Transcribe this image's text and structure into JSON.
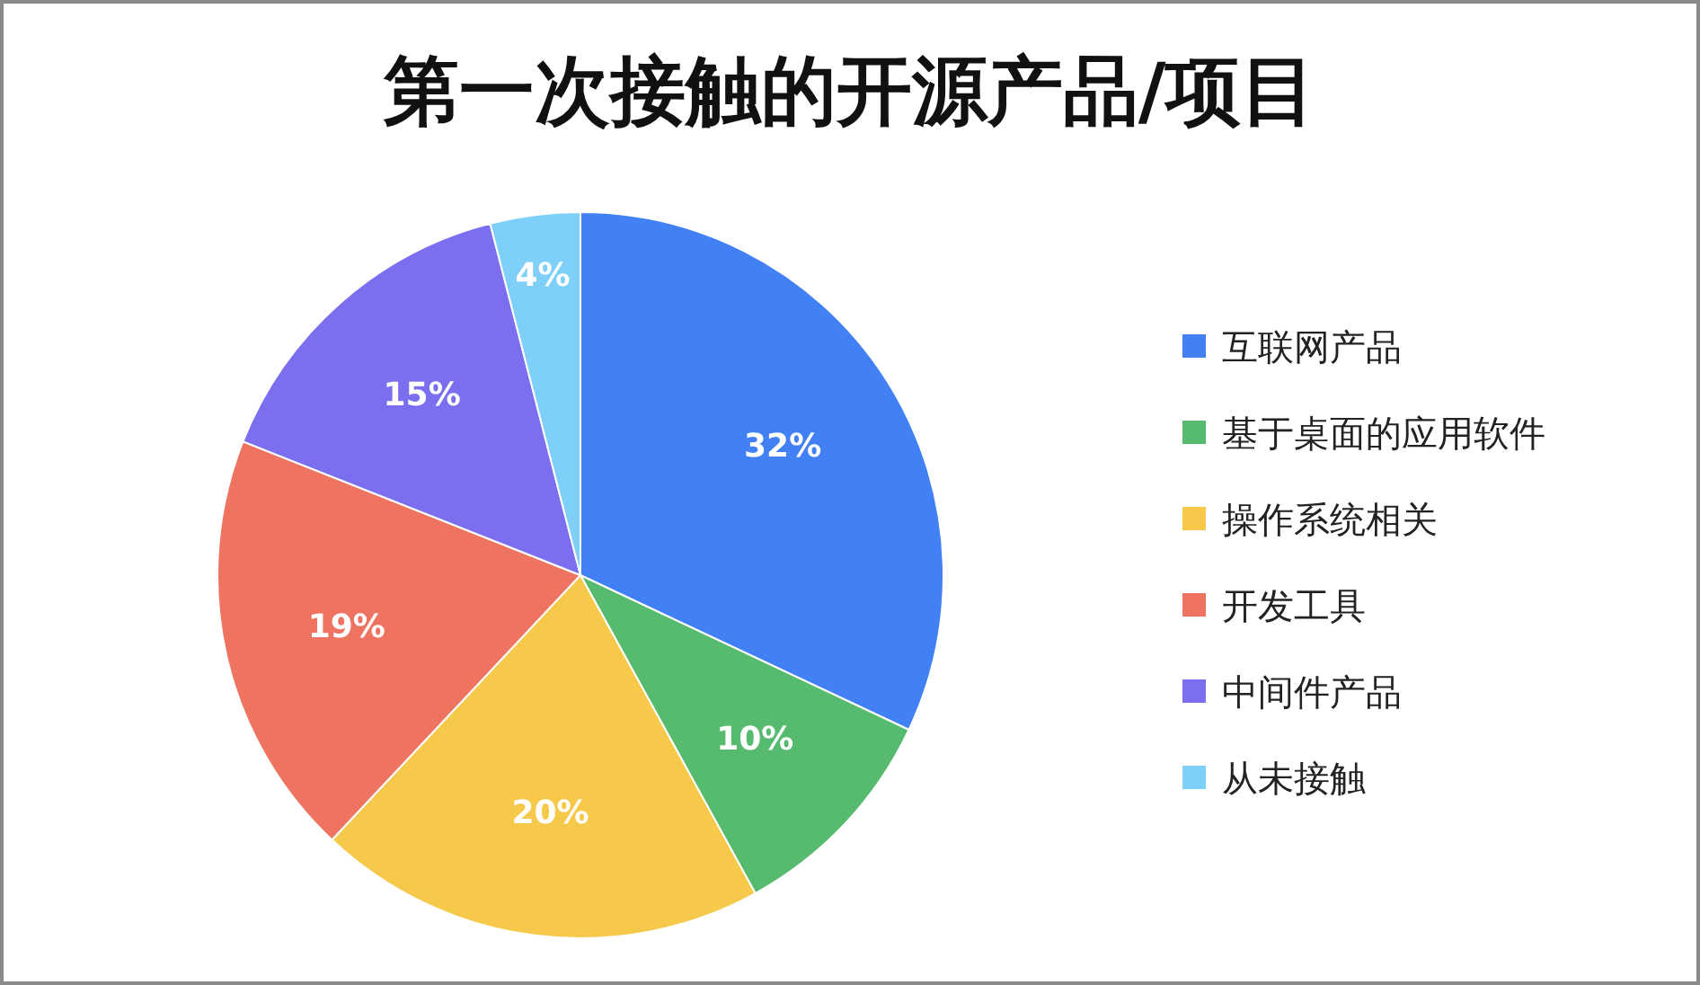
{
  "chart_data": {
    "type": "pie",
    "title": "第一次接触的开源产品/项目",
    "categories": [
      "互联网产品",
      "基于桌面的应用软件",
      "操作系统相关",
      "开发工具",
      "中间件产品",
      "从未接触"
    ],
    "values": [
      32,
      10,
      20,
      19,
      15,
      4
    ],
    "colors": [
      "#4280f5",
      "#57bb6f",
      "#f7c94b",
      "#ee7360",
      "#7b6ff0",
      "#7ecff9"
    ],
    "value_labels": [
      "32%",
      "10%",
      "20%",
      "19%",
      "15%",
      "4%"
    ],
    "legend": "right"
  }
}
